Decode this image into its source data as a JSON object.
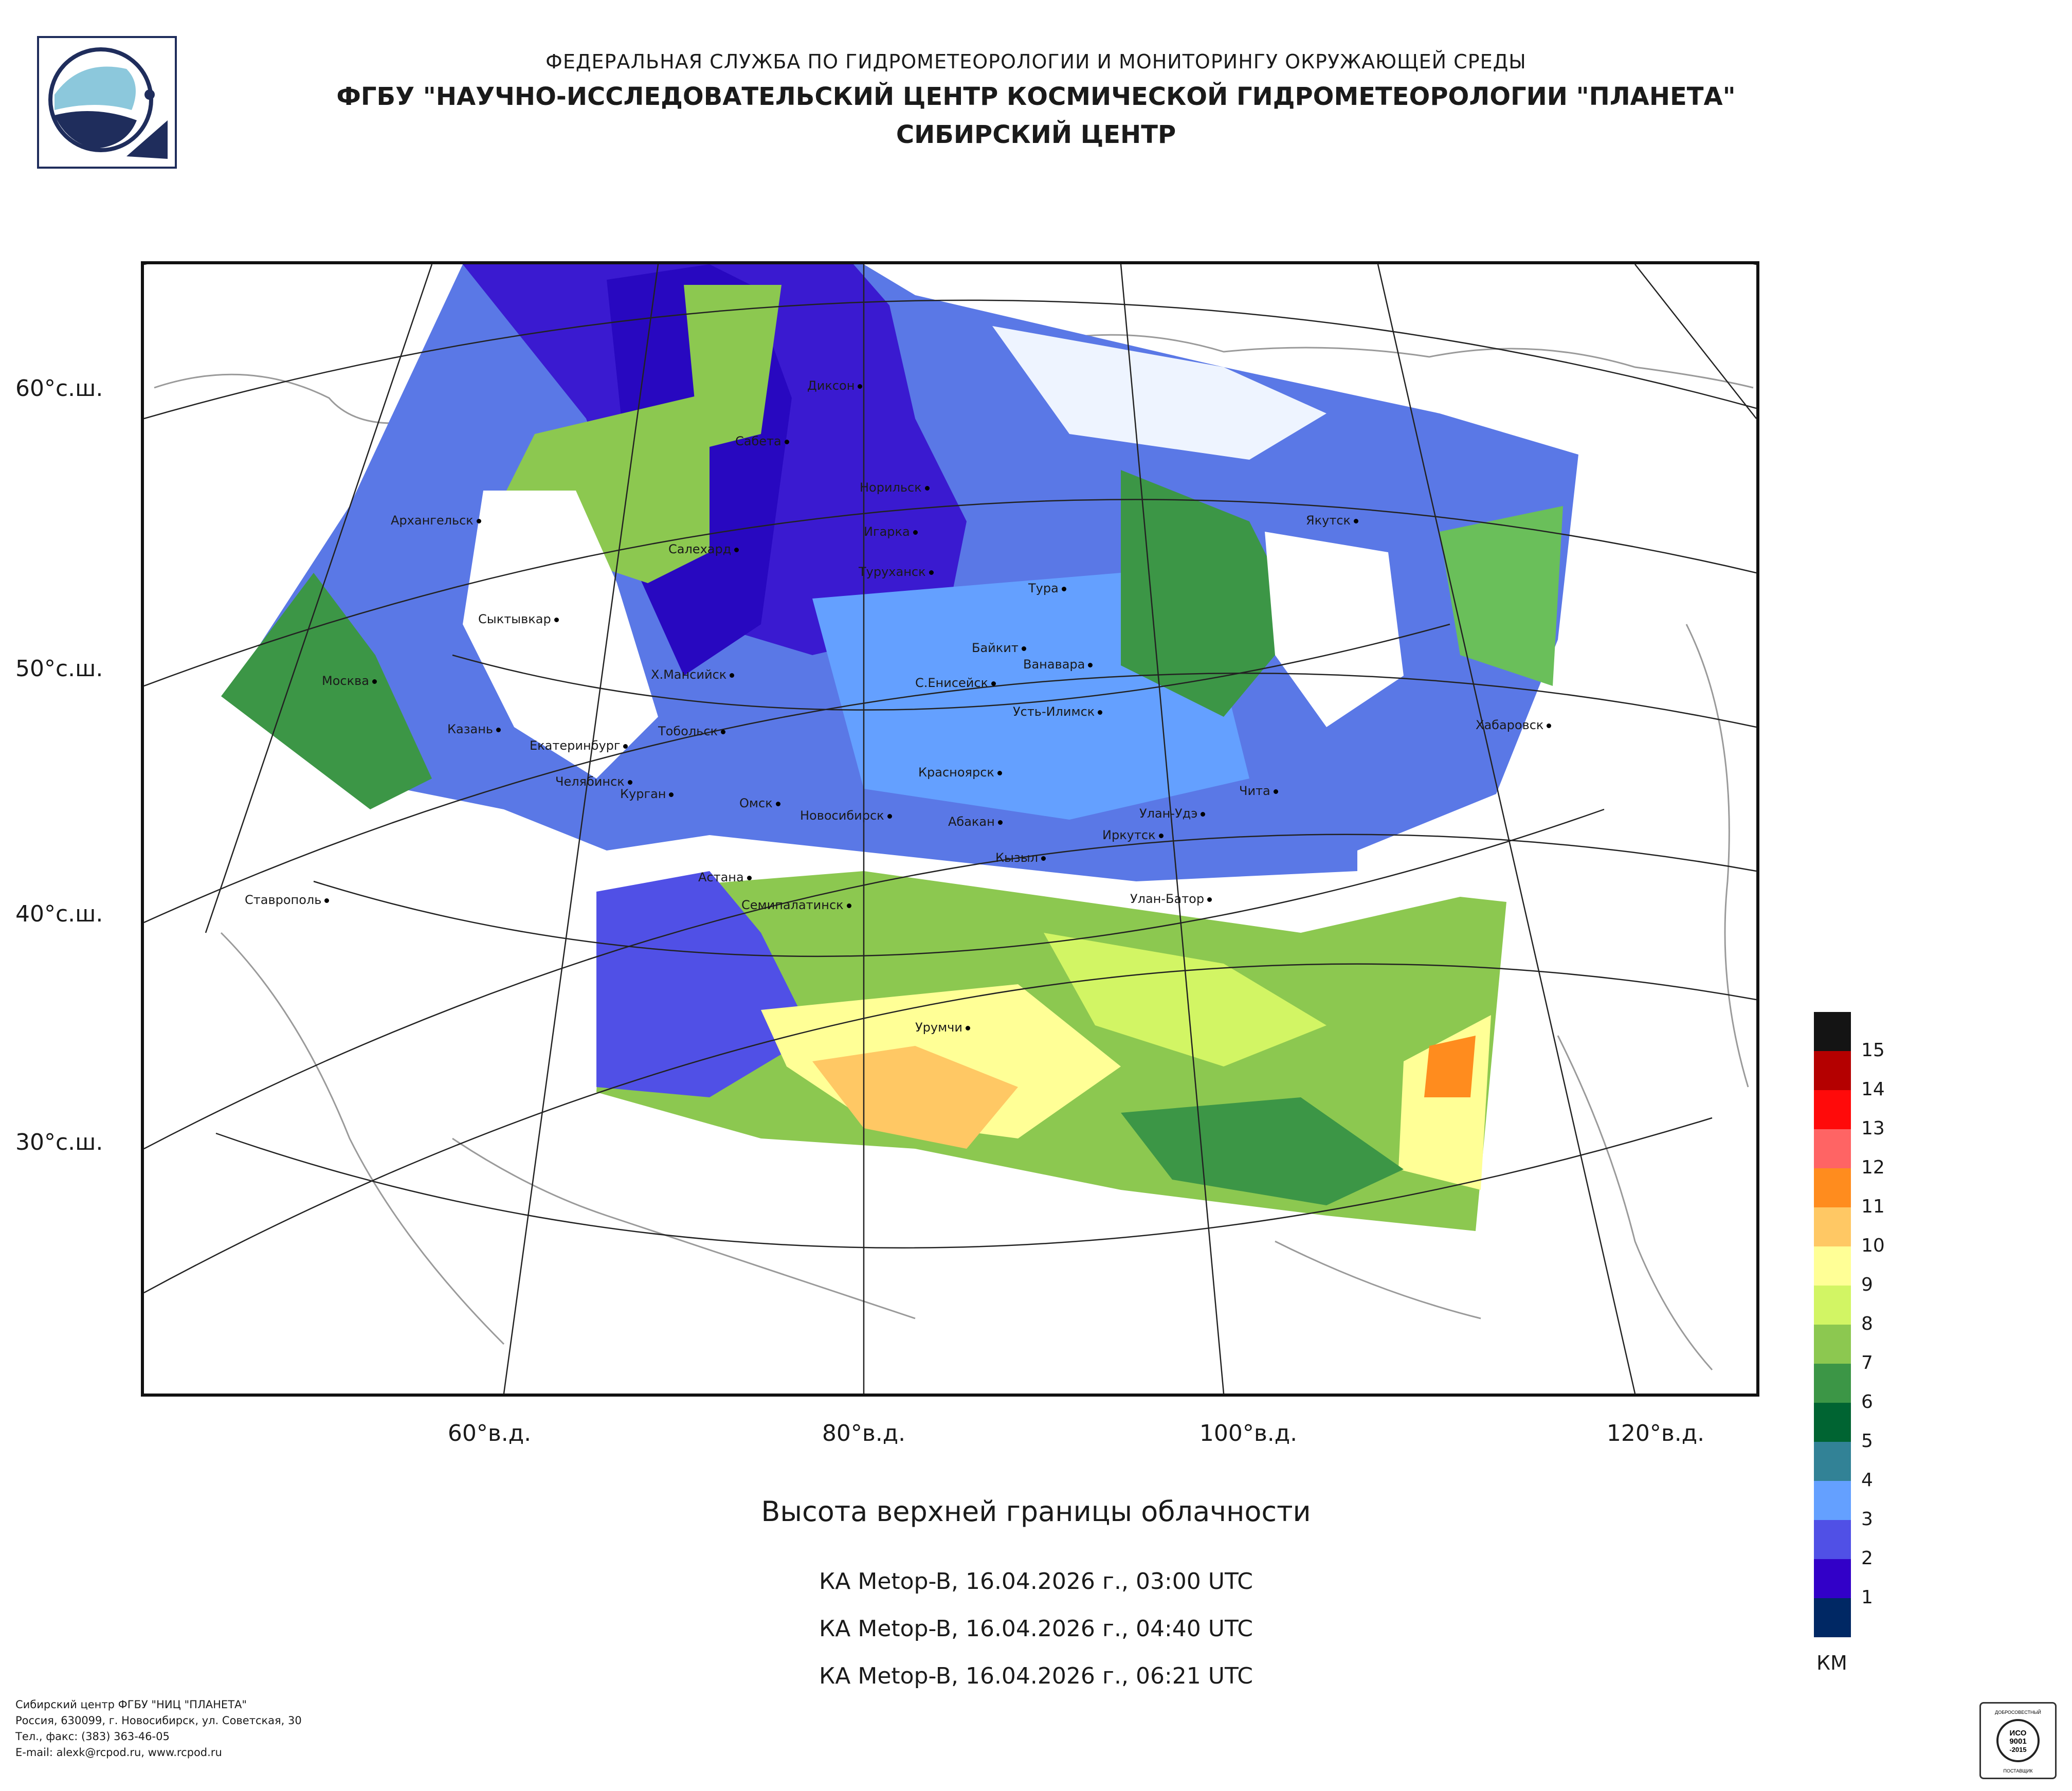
{
  "header": {
    "line1": "ФЕДЕРАЛЬНАЯ СЛУЖБА ПО ГИДРОМЕТЕОРОЛОГИИ И МОНИТОРИНГУ ОКРУЖАЮЩЕЙ СРЕДЫ",
    "line2": "ФГБУ \"НАУЧНО-ИССЛЕДОВАТЕЛЬСКИЙ ЦЕНТР КОСМИЧЕСКОЙ ГИДРОМЕТЕОРОЛОГИИ \"ПЛАНЕТА\"",
    "line3": "СИБИРСКИЙ ЦЕНТР"
  },
  "map": {
    "lat_labels": [
      "60°с.ш.",
      "50°с.ш.",
      "40°с.ш.",
      "30°с.ш."
    ],
    "lon_labels": [
      "60°в.д.",
      "80°в.д.",
      "100°в.д.",
      "120°в.д."
    ],
    "cities": [
      "Диксон",
      "Сабета",
      "Норильск",
      "Архангельск",
      "Салехард",
      "Игарка",
      "Туруханск",
      "Якутск",
      "Тура",
      "Сыктывкар",
      "Байкит",
      "Ванавара",
      "Москва",
      "Х.Мансийск",
      "С.Енисейск",
      "Усть-Илимск",
      "Хабаровск",
      "Казань",
      "Тобольск",
      "Екатеринбург",
      "Челябинск",
      "Курган",
      "Красноярск",
      "Чита",
      "Омск",
      "Новосибирск",
      "Улан-Удэ",
      "Абакан",
      "Иркутск",
      "Кызыл",
      "Астана",
      "Ставрополь",
      "Улан-Батор",
      "Семипалатинск",
      "Урумчи"
    ]
  },
  "title": "Высота верхней границы облачности",
  "passes": [
    "КА Metop-B, 16.04.2026 г., 03:00 UTC",
    "КА Metop-B, 16.04.2026 г., 04:40 UTC",
    "КА Metop-B, 16.04.2026 г., 06:21 UTC"
  ],
  "legend": {
    "unit": "КМ",
    "items": [
      {
        "label": "15",
        "color": "#141414"
      },
      {
        "label": "14",
        "color": "#b40000"
      },
      {
        "label": "13",
        "color": "#ff0a0a"
      },
      {
        "label": "12",
        "color": "#ff6464"
      },
      {
        "label": "11",
        "color": "#ff8c1e"
      },
      {
        "label": "10",
        "color": "#ffc864"
      },
      {
        "label": "9",
        "color": "#ffff96"
      },
      {
        "label": "8",
        "color": "#d2f564"
      },
      {
        "label": "7",
        "color": "#8cc850"
      },
      {
        "label": "6",
        "color": "#3c9646"
      },
      {
        "label": "5",
        "color": "#006432"
      },
      {
        "label": "4",
        "color": "#328296"
      },
      {
        "label": "3",
        "color": "#64a0ff"
      },
      {
        "label": "2",
        "color": "#5050e6"
      },
      {
        "label": "1",
        "color": "#3200c8"
      },
      {
        "label": "",
        "color": "#002864"
      }
    ]
  },
  "contact": [
    "Сибирский центр ФГБУ \"НИЦ \"ПЛАНЕТА\"",
    "Россия, 630099, г. Новосибирск, ул. Советская, 30",
    "Тел., факс: (383) 363-46-05",
    "E-mail: alexk@rcpod.ru, www.rcpod.ru"
  ],
  "cert": {
    "top": "ДОБРОСОВЕСТНЫЙ",
    "line1": "ИСО",
    "line2": "9001",
    "line3": "-2015",
    "bottom": "ПОСТАВЩИК"
  }
}
